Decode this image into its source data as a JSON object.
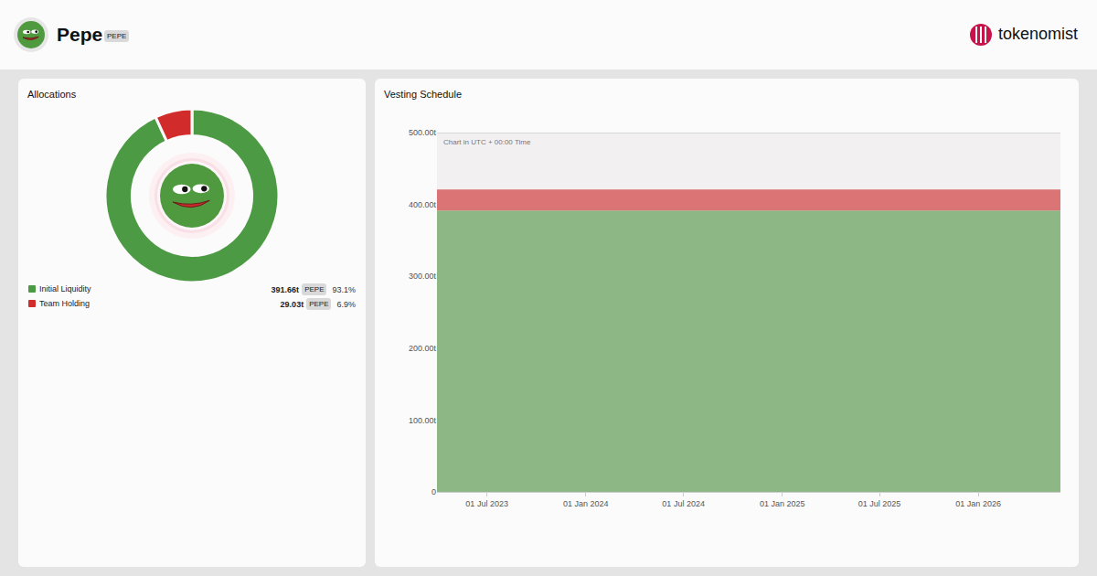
{
  "header": {
    "title": "Pepe",
    "symbol": "PEPE",
    "brand": "tokenomist"
  },
  "chart_data": [
    {
      "type": "pie",
      "title": "Allocations",
      "categories": [
        "Initial Liquidity",
        "Team Holding"
      ],
      "values": [
        391.66,
        29.03
      ],
      "value_labels": [
        "391.66t",
        "29.03t"
      ],
      "percent_labels": [
        "93.1%",
        "6.9%"
      ],
      "colors": [
        "#4c9a44",
        "#d22b2b"
      ]
    },
    {
      "type": "area",
      "title": "Vesting Schedule",
      "stacked": true,
      "grid": true,
      "note": "Chart in UTC + 00:00 Time",
      "x": [
        "2023-03-30",
        "2026-06-03"
      ],
      "series": [
        {
          "name": "Initial Liquidity",
          "color": "#8db886",
          "values": [
            391.66,
            391.66
          ]
        },
        {
          "name": "Team Holding",
          "color": "#db7575",
          "values": [
            29.03,
            29.03
          ]
        }
      ],
      "xlim": [
        "2023-03-30",
        "2026-06-03"
      ],
      "xticks": [
        {
          "value": "2023-07-01",
          "label": "01 Jul 2023"
        },
        {
          "value": "2024-01-01",
          "label": "01 Jan 2024"
        },
        {
          "value": "2024-07-01",
          "label": "01 Jul 2024"
        },
        {
          "value": "2025-01-01",
          "label": "01 Jan 2025"
        },
        {
          "value": "2025-07-01",
          "label": "01 Jul 2025"
        },
        {
          "value": "2026-01-01",
          "label": "01 Jan 2026"
        }
      ],
      "ylim": [
        0,
        500
      ],
      "yticks": [
        0,
        {
          "value": 100,
          "label": "100.00t"
        },
        {
          "value": 200,
          "label": "200.00t"
        },
        {
          "value": 300,
          "label": "300.00t"
        },
        {
          "value": 400,
          "label": "400.00t"
        },
        {
          "value": 500,
          "label": "500.00t"
        }
      ]
    }
  ]
}
